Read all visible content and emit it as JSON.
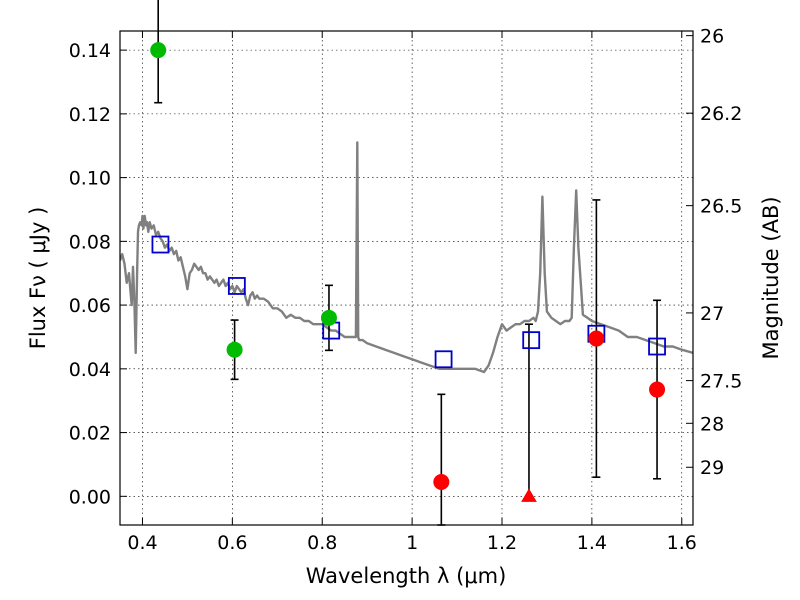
{
  "chart_data": {
    "type": "scatter",
    "xlabel": "Wavelength  λ (μm)",
    "ylabel": "Flux  Fν  ( μJy )",
    "y2label": "Magnitude (AB)",
    "xlim": [
      0.35,
      1.625
    ],
    "ylim": [
      -0.009,
      0.146
    ],
    "xticks": [
      "0.4",
      "0.6",
      "0.8",
      "1",
      "1.2",
      "1.4",
      "1.6"
    ],
    "xtick_values": [
      0.4,
      0.6,
      0.8,
      1.0,
      1.2,
      1.4,
      1.6
    ],
    "yticks": [
      "0.00",
      "0.02",
      "0.04",
      "0.06",
      "0.08",
      "0.10",
      "0.12",
      "0.14"
    ],
    "ytick_values": [
      0.0,
      0.02,
      0.04,
      0.06,
      0.08,
      0.1,
      0.12,
      0.14
    ],
    "y2ticks": [
      "26",
      "26.2",
      "26.5",
      "27",
      "27.5",
      "28",
      "29"
    ],
    "y2tick_values": [
      26,
      26.2,
      26.5,
      27,
      27.5,
      28,
      29
    ],
    "grid": true,
    "colors": {
      "model": "#808080",
      "model_mag": "#0000cc",
      "detected": "#00bb00",
      "low_sn": "#ff0000",
      "errorbar": "#000000"
    },
    "series": [
      {
        "kind": "line",
        "x": [
          0.35,
          0.355,
          0.36,
          0.365,
          0.37,
          0.373,
          0.376,
          0.379,
          0.382,
          0.385,
          0.388,
          0.39,
          0.392,
          0.395,
          0.398,
          0.4,
          0.402,
          0.405,
          0.408,
          0.41,
          0.413,
          0.416,
          0.42,
          0.425,
          0.43,
          0.435,
          0.44,
          0.445,
          0.45,
          0.455,
          0.46,
          0.465,
          0.47,
          0.475,
          0.48,
          0.485,
          0.49,
          0.495,
          0.5,
          0.505,
          0.51,
          0.515,
          0.52,
          0.525,
          0.53,
          0.535,
          0.54,
          0.545,
          0.55,
          0.555,
          0.56,
          0.565,
          0.57,
          0.575,
          0.58,
          0.585,
          0.59,
          0.595,
          0.6,
          0.605,
          0.61,
          0.615,
          0.62,
          0.625,
          0.63,
          0.635,
          0.64,
          0.645,
          0.65,
          0.655,
          0.66,
          0.67,
          0.68,
          0.69,
          0.7,
          0.71,
          0.72,
          0.73,
          0.74,
          0.75,
          0.76,
          0.77,
          0.78,
          0.79,
          0.8,
          0.81,
          0.82,
          0.83,
          0.84,
          0.85,
          0.86,
          0.87,
          0.875,
          0.878,
          0.88,
          0.882,
          0.885,
          0.89,
          0.9,
          0.92,
          0.94,
          0.96,
          0.98,
          1.0,
          1.02,
          1.04,
          1.06,
          1.08,
          1.1,
          1.12,
          1.14,
          1.16,
          1.17,
          1.18,
          1.19,
          1.2,
          1.21,
          1.22,
          1.23,
          1.24,
          1.25,
          1.26,
          1.27,
          1.275,
          1.28,
          1.285,
          1.29,
          1.295,
          1.3,
          1.31,
          1.32,
          1.33,
          1.34,
          1.35,
          1.355,
          1.36,
          1.365,
          1.37,
          1.38,
          1.39,
          1.4,
          1.42,
          1.44,
          1.46,
          1.48,
          1.5,
          1.52,
          1.54,
          1.56,
          1.58,
          1.6,
          1.625
        ],
        "y": [
          0.074,
          0.076,
          0.073,
          0.067,
          0.07,
          0.065,
          0.06,
          0.072,
          0.061,
          0.045,
          0.07,
          0.083,
          0.085,
          0.086,
          0.085,
          0.088,
          0.084,
          0.088,
          0.085,
          0.086,
          0.083,
          0.086,
          0.084,
          0.085,
          0.082,
          0.083,
          0.081,
          0.08,
          0.078,
          0.079,
          0.077,
          0.078,
          0.076,
          0.077,
          0.074,
          0.075,
          0.072,
          0.069,
          0.065,
          0.07,
          0.071,
          0.073,
          0.072,
          0.071,
          0.072,
          0.07,
          0.07,
          0.068,
          0.069,
          0.068,
          0.067,
          0.068,
          0.066,
          0.067,
          0.068,
          0.066,
          0.067,
          0.065,
          0.066,
          0.064,
          0.066,
          0.065,
          0.064,
          0.065,
          0.062,
          0.06,
          0.063,
          0.064,
          0.062,
          0.063,
          0.062,
          0.062,
          0.061,
          0.059,
          0.059,
          0.058,
          0.056,
          0.057,
          0.056,
          0.056,
          0.055,
          0.055,
          0.054,
          0.054,
          0.054,
          0.053,
          0.052,
          0.052,
          0.051,
          0.05,
          0.05,
          0.05,
          0.05,
          0.111,
          0.05,
          0.049,
          0.049,
          0.049,
          0.048,
          0.047,
          0.046,
          0.045,
          0.044,
          0.043,
          0.042,
          0.041,
          0.04,
          0.04,
          0.04,
          0.04,
          0.04,
          0.039,
          0.041,
          0.045,
          0.05,
          0.054,
          0.052,
          0.053,
          0.054,
          0.054,
          0.055,
          0.055,
          0.056,
          0.055,
          0.058,
          0.07,
          0.094,
          0.07,
          0.058,
          0.056,
          0.055,
          0.054,
          0.055,
          0.055,
          0.056,
          0.078,
          0.096,
          0.078,
          0.057,
          0.056,
          0.055,
          0.054,
          0.053,
          0.052,
          0.05,
          0.05,
          0.049,
          0.048,
          0.047,
          0.047,
          0.046,
          0.045
        ]
      },
      {
        "kind": "squares",
        "x": [
          0.44,
          0.61,
          0.82,
          1.07,
          1.265,
          1.41,
          1.545
        ],
        "y": [
          0.079,
          0.066,
          0.052,
          0.043,
          0.049,
          0.051,
          0.047
        ]
      },
      {
        "kind": "circles",
        "x": [
          0.435,
          0.605,
          0.815
        ],
        "y": [
          0.14,
          0.046,
          0.056
        ],
        "yerr": [
          0.0165,
          0.0093,
          0.0102
        ]
      },
      {
        "kind": "circles",
        "x": [
          1.065,
          1.41,
          1.545
        ],
        "y": [
          0.0045,
          0.0495,
          0.0335
        ],
        "yerr_low": [
          0.0135,
          0.0435,
          0.028
        ],
        "yerr_high": [
          0.0275,
          0.0435,
          0.028
        ]
      },
      {
        "kind": "triangles",
        "x": [
          1.26
        ],
        "y": [
          0.0
        ],
        "y_low": [
          0.0
        ],
        "y_high": [
          0.054
        ]
      }
    ]
  }
}
